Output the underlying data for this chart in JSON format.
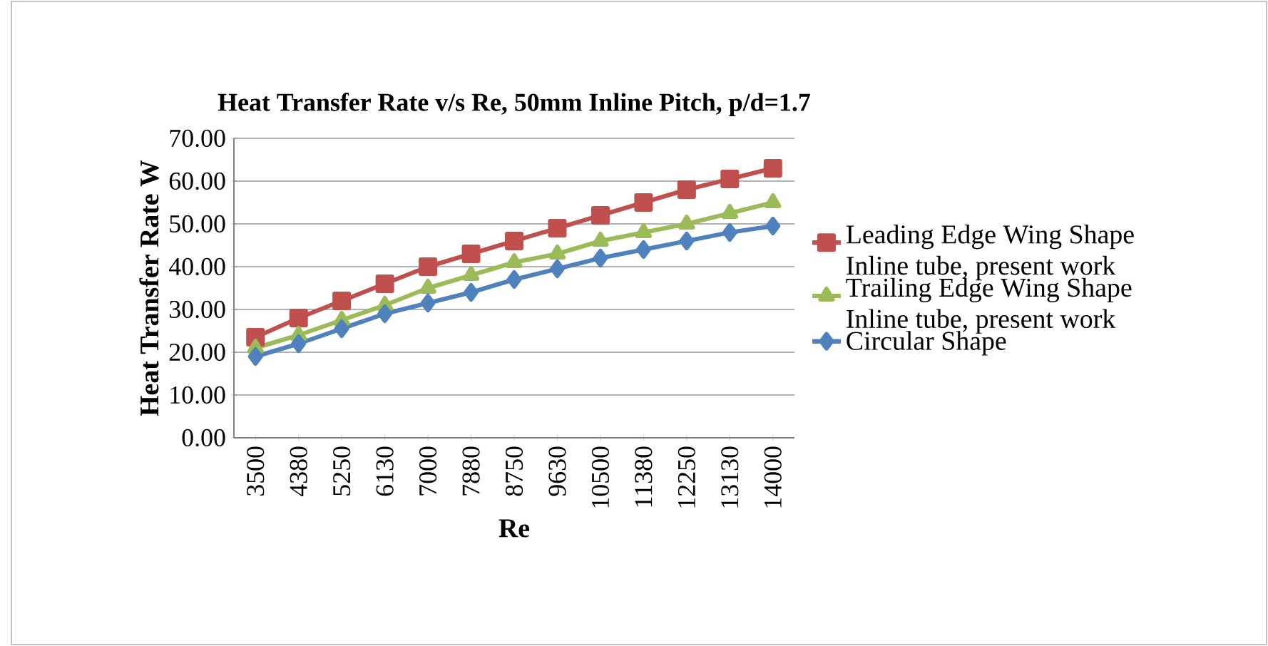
{
  "chart_data": {
    "type": "line",
    "title": "Heat Transfer Rate v/s Re, 50mm Inline Pitch, p/d=1.7",
    "xlabel": "Re",
    "ylabel": "Heat Transfer Rate W",
    "categories": [
      "3500",
      "4380",
      "5250",
      "6130",
      "7000",
      "7880",
      "8750",
      "9630",
      "10500",
      "11380",
      "12250",
      "13130",
      "14000"
    ],
    "series": [
      {
        "name": "Leading Edge Wing Shape Inline tube, present work",
        "color": "#c0504d",
        "marker": "square",
        "values": [
          23.5,
          28,
          32,
          36,
          40,
          43,
          46,
          49,
          52,
          55,
          58,
          60.5,
          63
        ]
      },
      {
        "name": "Trailing Edge Wing Shape Inline tube, present work",
        "color": "#9bbb59",
        "marker": "triangle",
        "values": [
          21,
          24,
          27.5,
          31,
          35,
          38,
          41,
          43,
          46,
          48,
          50,
          52.5,
          55
        ]
      },
      {
        "name": "Circular Shape",
        "color": "#4f81bd",
        "marker": "diamond",
        "values": [
          19,
          22,
          25.5,
          29,
          31.5,
          34,
          37,
          39.5,
          42,
          44,
          46,
          48,
          49.5
        ]
      }
    ],
    "ylim": [
      0,
      70
    ],
    "yticks": [
      {
        "value": 0,
        "label": "0.00"
      },
      {
        "value": 10,
        "label": "10.00"
      },
      {
        "value": 20,
        "label": "20.00"
      },
      {
        "value": 30,
        "label": "30.00"
      },
      {
        "value": 40,
        "label": "40.00"
      },
      {
        "value": 50,
        "label": "50.00"
      },
      {
        "value": 60,
        "label": "60.00"
      },
      {
        "value": 70,
        "label": "70.00"
      }
    ],
    "grid": "y",
    "legend": "right",
    "line_style": "solid"
  }
}
